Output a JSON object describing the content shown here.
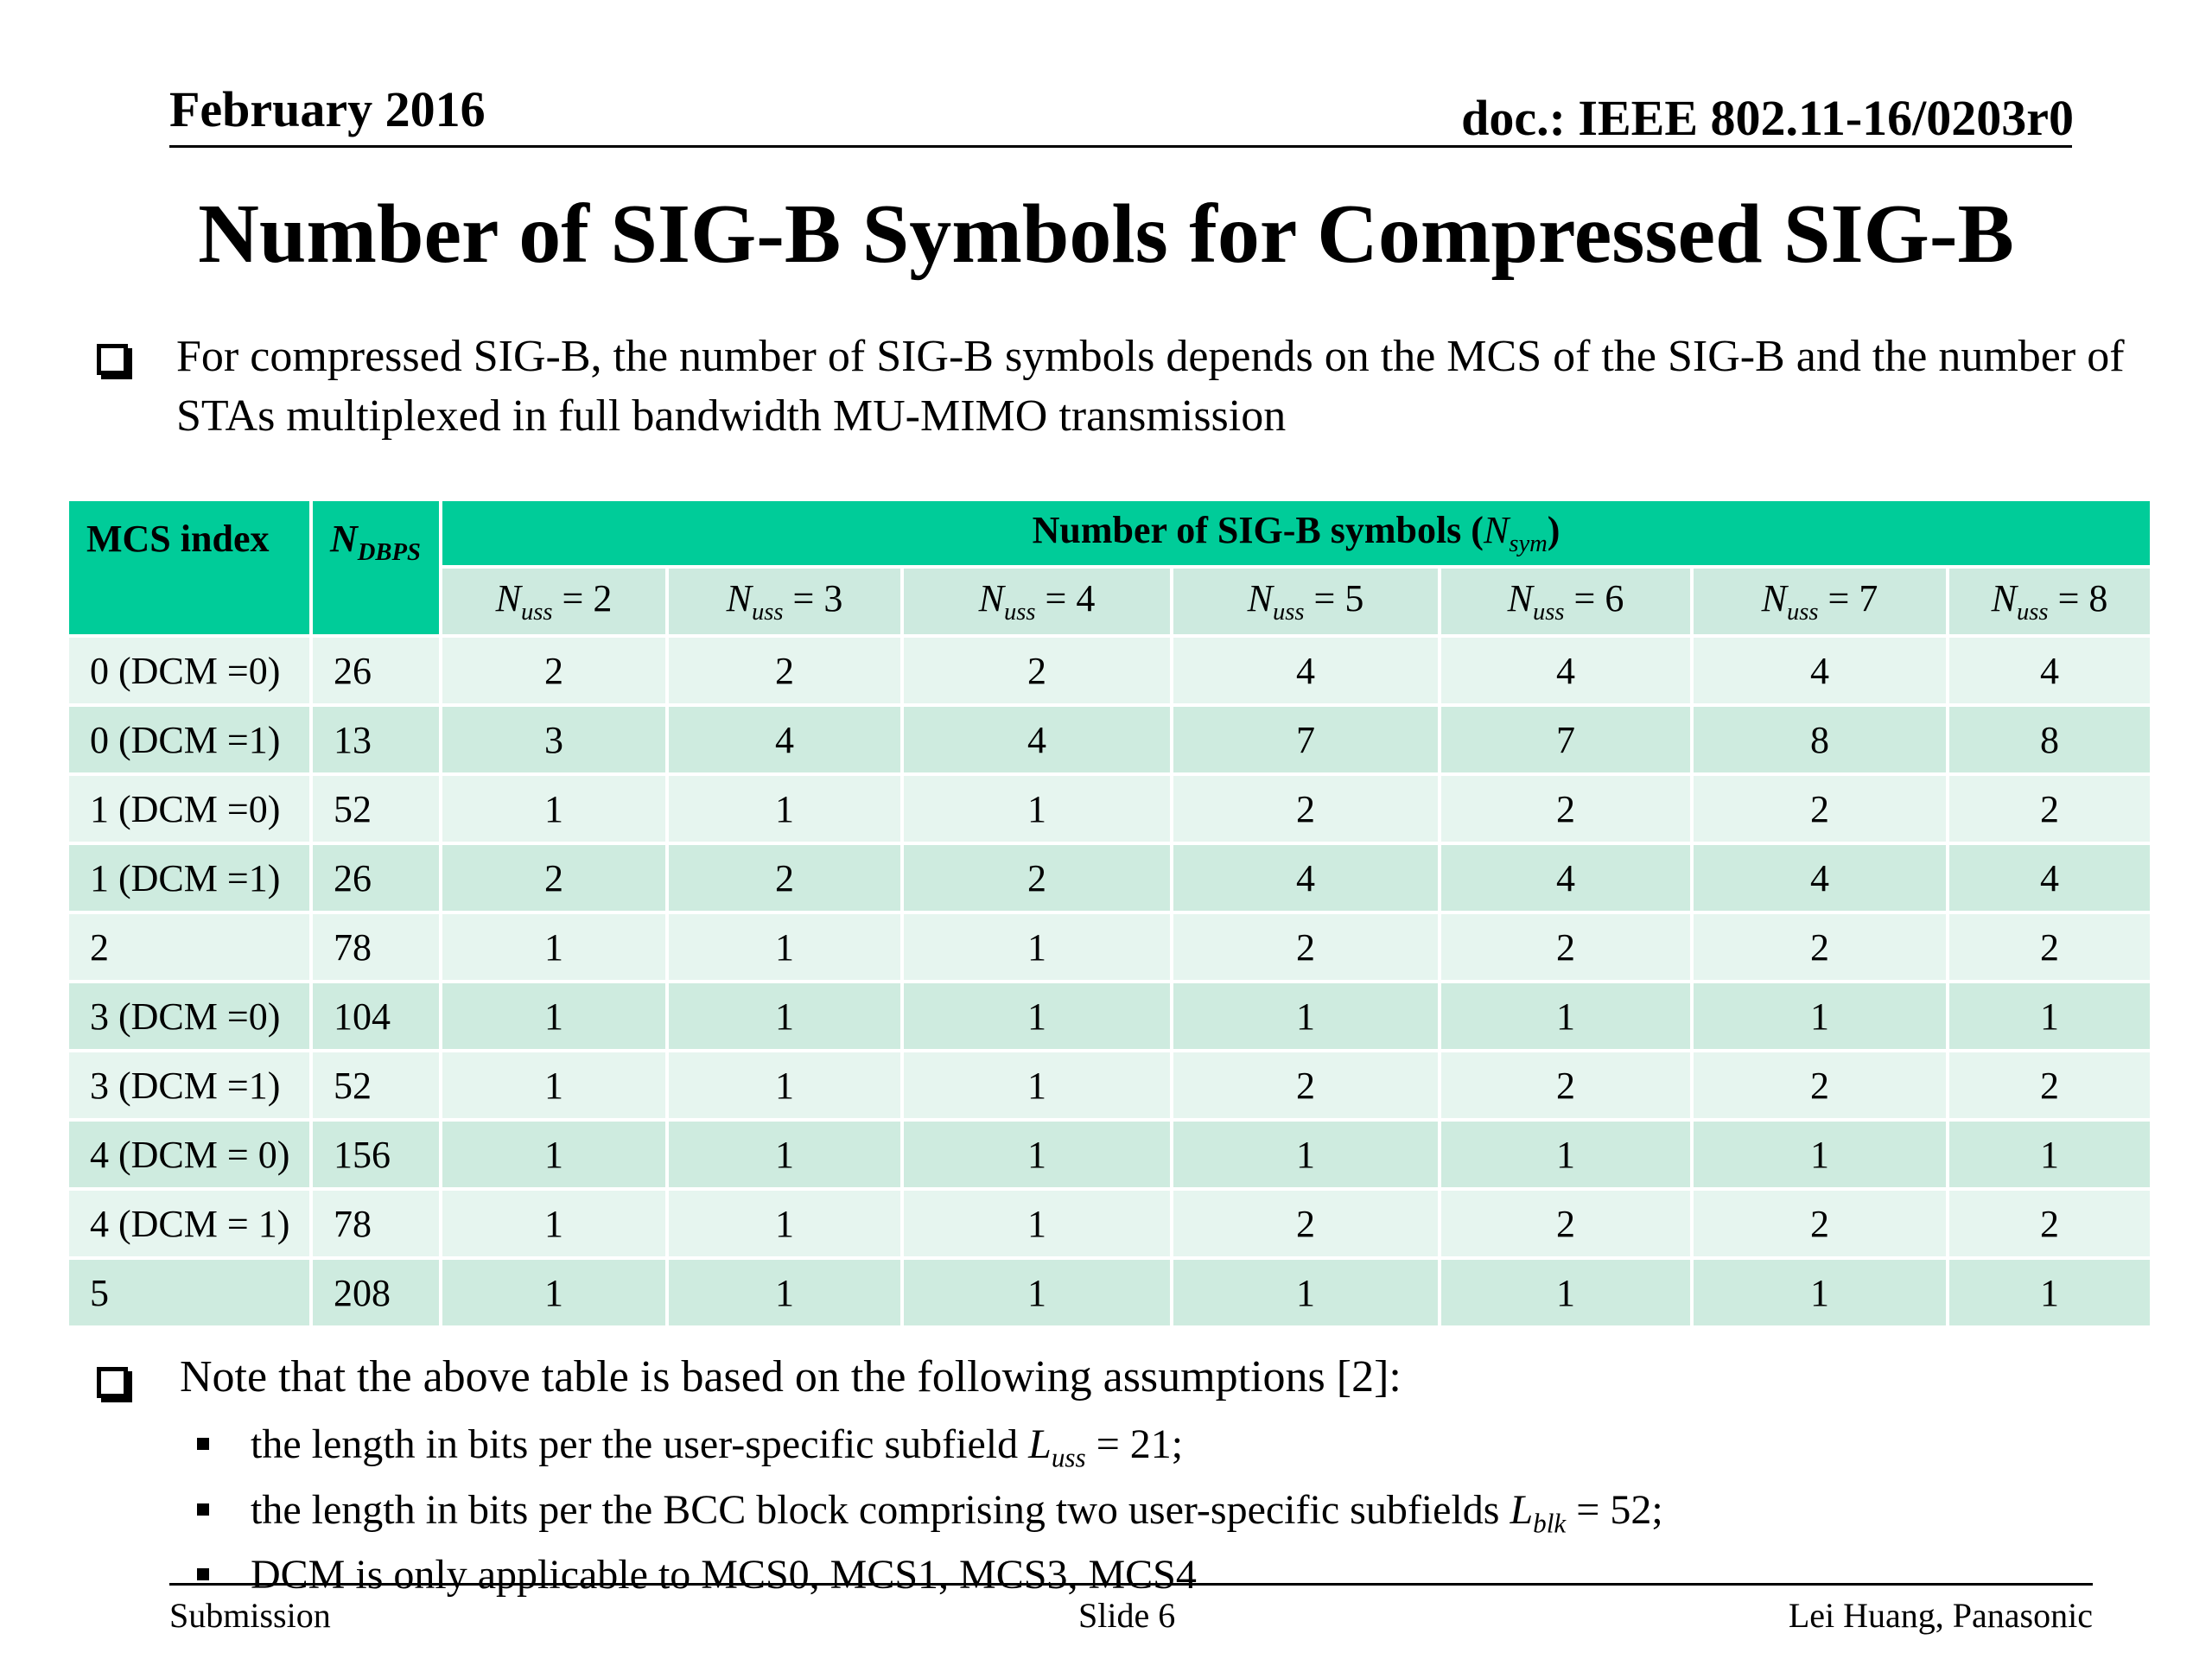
{
  "header": {
    "date": "February 2016",
    "doc_id": "doc.: IEEE 802.11-16/0203r0"
  },
  "title": "Number of SIG-B Symbols for Compressed SIG-B",
  "intro_bullet": "For compressed SIG-B, the number of SIG-B symbols depends on the MCS of the SIG-B and the number of STAs multiplexed in full bandwidth MU-MIMO transmission",
  "table": {
    "col_mcs": "MCS index",
    "col_ndbps_main": "N",
    "col_ndbps_sub": "DBPS",
    "span_header_text": "Number of SIG-B symbols (",
    "span_header_var": "N",
    "span_header_var_sub": "sym",
    "span_header_close": ")",
    "nuss_headers": [
      {
        "var": "N",
        "sub": "uss",
        "eq": " = 2"
      },
      {
        "var": "N",
        "sub": "uss",
        "eq": " = 3"
      },
      {
        "var": "N",
        "sub": "uss",
        "eq": " = 4"
      },
      {
        "var": "N",
        "sub": "uss",
        "eq": " = 5"
      },
      {
        "var": "N",
        "sub": "uss",
        "eq": " = 6"
      },
      {
        "var": "N",
        "sub": "uss",
        "eq": " = 7"
      },
      {
        "var": "N",
        "sub": "uss",
        "eq": " = 8"
      }
    ],
    "rows": [
      {
        "mcs": "0 (DCM =0)",
        "ndbps": "26",
        "vals": [
          "2",
          "2",
          "2",
          "4",
          "4",
          "4",
          "4"
        ]
      },
      {
        "mcs": "0 (DCM =1)",
        "ndbps": "13",
        "vals": [
          "3",
          "4",
          "4",
          "7",
          "7",
          "8",
          "8"
        ]
      },
      {
        "mcs": "1 (DCM =0)",
        "ndbps": "52",
        "vals": [
          "1",
          "1",
          "1",
          "2",
          "2",
          "2",
          "2"
        ]
      },
      {
        "mcs": "1 (DCM =1)",
        "ndbps": "26",
        "vals": [
          "2",
          "2",
          "2",
          "4",
          "4",
          "4",
          "4"
        ]
      },
      {
        "mcs": "2",
        "ndbps": "78",
        "vals": [
          "1",
          "1",
          "1",
          "2",
          "2",
          "2",
          "2"
        ]
      },
      {
        "mcs": "3 (DCM =0)",
        "ndbps": "104",
        "vals": [
          "1",
          "1",
          "1",
          "1",
          "1",
          "1",
          "1"
        ]
      },
      {
        "mcs": "3 (DCM =1)",
        "ndbps": "52",
        "vals": [
          "1",
          "1",
          "1",
          "2",
          "2",
          "2",
          "2"
        ]
      },
      {
        "mcs": "4 (DCM = 0)",
        "ndbps": "156",
        "vals": [
          "1",
          "1",
          "1",
          "1",
          "1",
          "1",
          "1"
        ]
      },
      {
        "mcs": "4 (DCM = 1)",
        "ndbps": "78",
        "vals": [
          "1",
          "1",
          "1",
          "2",
          "2",
          "2",
          "2"
        ]
      },
      {
        "mcs": "5",
        "ndbps": "208",
        "vals": [
          "1",
          "1",
          "1",
          "1",
          "1",
          "1",
          "1"
        ]
      }
    ]
  },
  "note": {
    "heading": "Note that the above table is based on the following assumptions [2]:",
    "items": [
      {
        "pre": "the length in bits per the user-specific subfield ",
        "var": "L",
        "sub": "uss",
        "post": " = 21;"
      },
      {
        "pre": "the length in bits per the BCC block comprising two user-specific subfields ",
        "var": "L",
        "sub": "blk",
        "post": " = 52;"
      },
      {
        "pre": "DCM is only applicable to MCS0, MCS1, MCS3, MCS4",
        "var": "",
        "sub": "",
        "post": ""
      }
    ]
  },
  "footer": {
    "left": "Submission",
    "center": "Slide 6",
    "right": "Lei Huang, Panasonic"
  },
  "colors": {
    "header_green": "#00cc99",
    "row_light": "#e6f5ef",
    "row_dark": "#ceebdf"
  }
}
